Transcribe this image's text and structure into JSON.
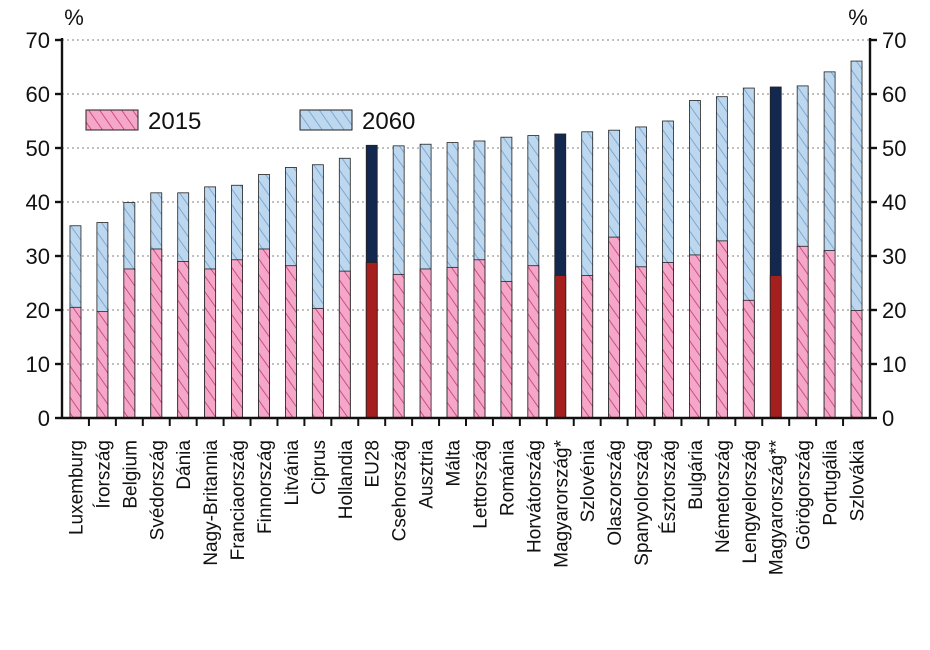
{
  "chart_data": {
    "type": "bar",
    "stacked_overlay": true,
    "unit_left": "%",
    "unit_right": "%",
    "ylim": [
      0,
      70
    ],
    "yticks": [
      0,
      10,
      20,
      30,
      40,
      50,
      60,
      70
    ],
    "grid": "dotted horizontal",
    "legend_position": "top-left",
    "categories": [
      "Luxemburg",
      "Írország",
      "Belgium",
      "Svédország",
      "Dánia",
      "Nagy-Britannia",
      "Franciaország",
      "Finnország",
      "Litvánia",
      "Ciprus",
      "Hollandia",
      "EU28",
      "Csehország",
      "Ausztria",
      "Málta",
      "Lettország",
      "Románia",
      "Horvátország",
      "Magyarország*",
      "Szlovénia",
      "Olaszország",
      "Spanyolország",
      "Észtország",
      "Bulgária",
      "Németország",
      "Lengyelország",
      "Magyarország**",
      "Görögország",
      "Portugália",
      "Szlovákia"
    ],
    "highlighted": [
      "EU28",
      "Magyarország*",
      "Magyarország**"
    ],
    "series": [
      {
        "name": "2015",
        "values": [
          20.5,
          19.7,
          27.6,
          31.3,
          29.0,
          27.6,
          29.3,
          31.3,
          28.2,
          20.3,
          27.2,
          28.8,
          26.6,
          27.6,
          27.9,
          29.3,
          25.3,
          28.2,
          26.4,
          26.4,
          33.5,
          28.0,
          28.8,
          30.2,
          32.8,
          21.8,
          26.4,
          31.8,
          31.0,
          19.9
        ]
      },
      {
        "name": "2060",
        "values": [
          35.6,
          36.2,
          39.9,
          41.7,
          41.7,
          42.8,
          43.1,
          45.1,
          46.4,
          46.9,
          48.1,
          50.5,
          50.4,
          50.7,
          51.0,
          51.3,
          52.0,
          52.3,
          52.6,
          53.0,
          53.3,
          53.9,
          55.0,
          58.8,
          59.5,
          61.1,
          61.3,
          61.5,
          64.1,
          66.1
        ]
      }
    ],
    "colors": {
      "pink_fill": "#f4a7c8",
      "pink_hatch": "#c33a6b",
      "blue_fill": "#bcd7ee",
      "blue_hatch": "#6b9fcf",
      "dark_red": "#a51f1f",
      "dark_navy": "#13284f",
      "axis": "#111111",
      "grid": "#9a9a9a"
    }
  }
}
